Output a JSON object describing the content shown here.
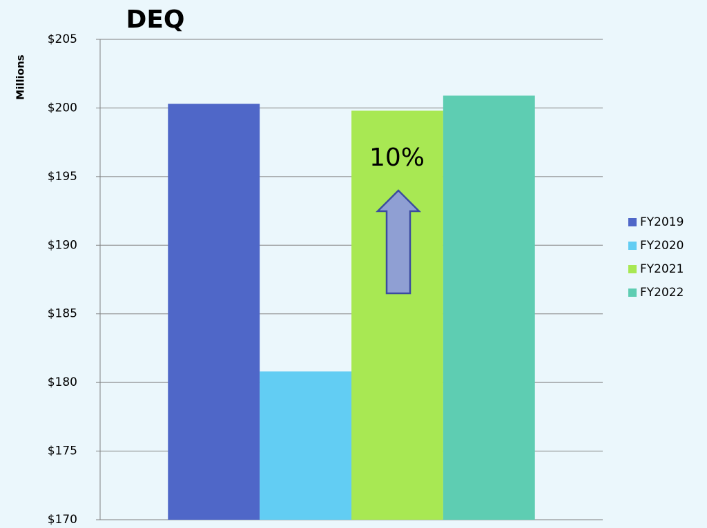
{
  "chart_data": {
    "type": "bar",
    "title": "DEQ",
    "y_label": "Millions",
    "annotation": "10%",
    "categories": [
      null
    ],
    "series": [
      {
        "name": "FY2019",
        "color": "#4f67c8",
        "values": [
          200.3
        ]
      },
      {
        "name": "FY2020",
        "color": "#62cdf3",
        "values": [
          180.8
        ]
      },
      {
        "name": "FY2021",
        "color": "#a8e853",
        "values": [
          199.8
        ]
      },
      {
        "name": "FY2022",
        "color": "#5ecdb2",
        "values": [
          200.9
        ]
      }
    ],
    "ylim": [
      170,
      205
    ],
    "yticks": [
      {
        "value": 170,
        "label": "$170"
      },
      {
        "value": 175,
        "label": "$175"
      },
      {
        "value": 180,
        "label": "$180"
      },
      {
        "value": 185,
        "label": "$185"
      },
      {
        "value": 190,
        "label": "$190"
      },
      {
        "value": 195,
        "label": "$195"
      },
      {
        "value": 200,
        "label": "$200"
      },
      {
        "value": 205,
        "label": "$205"
      }
    ],
    "grid": true,
    "legend": "right"
  }
}
